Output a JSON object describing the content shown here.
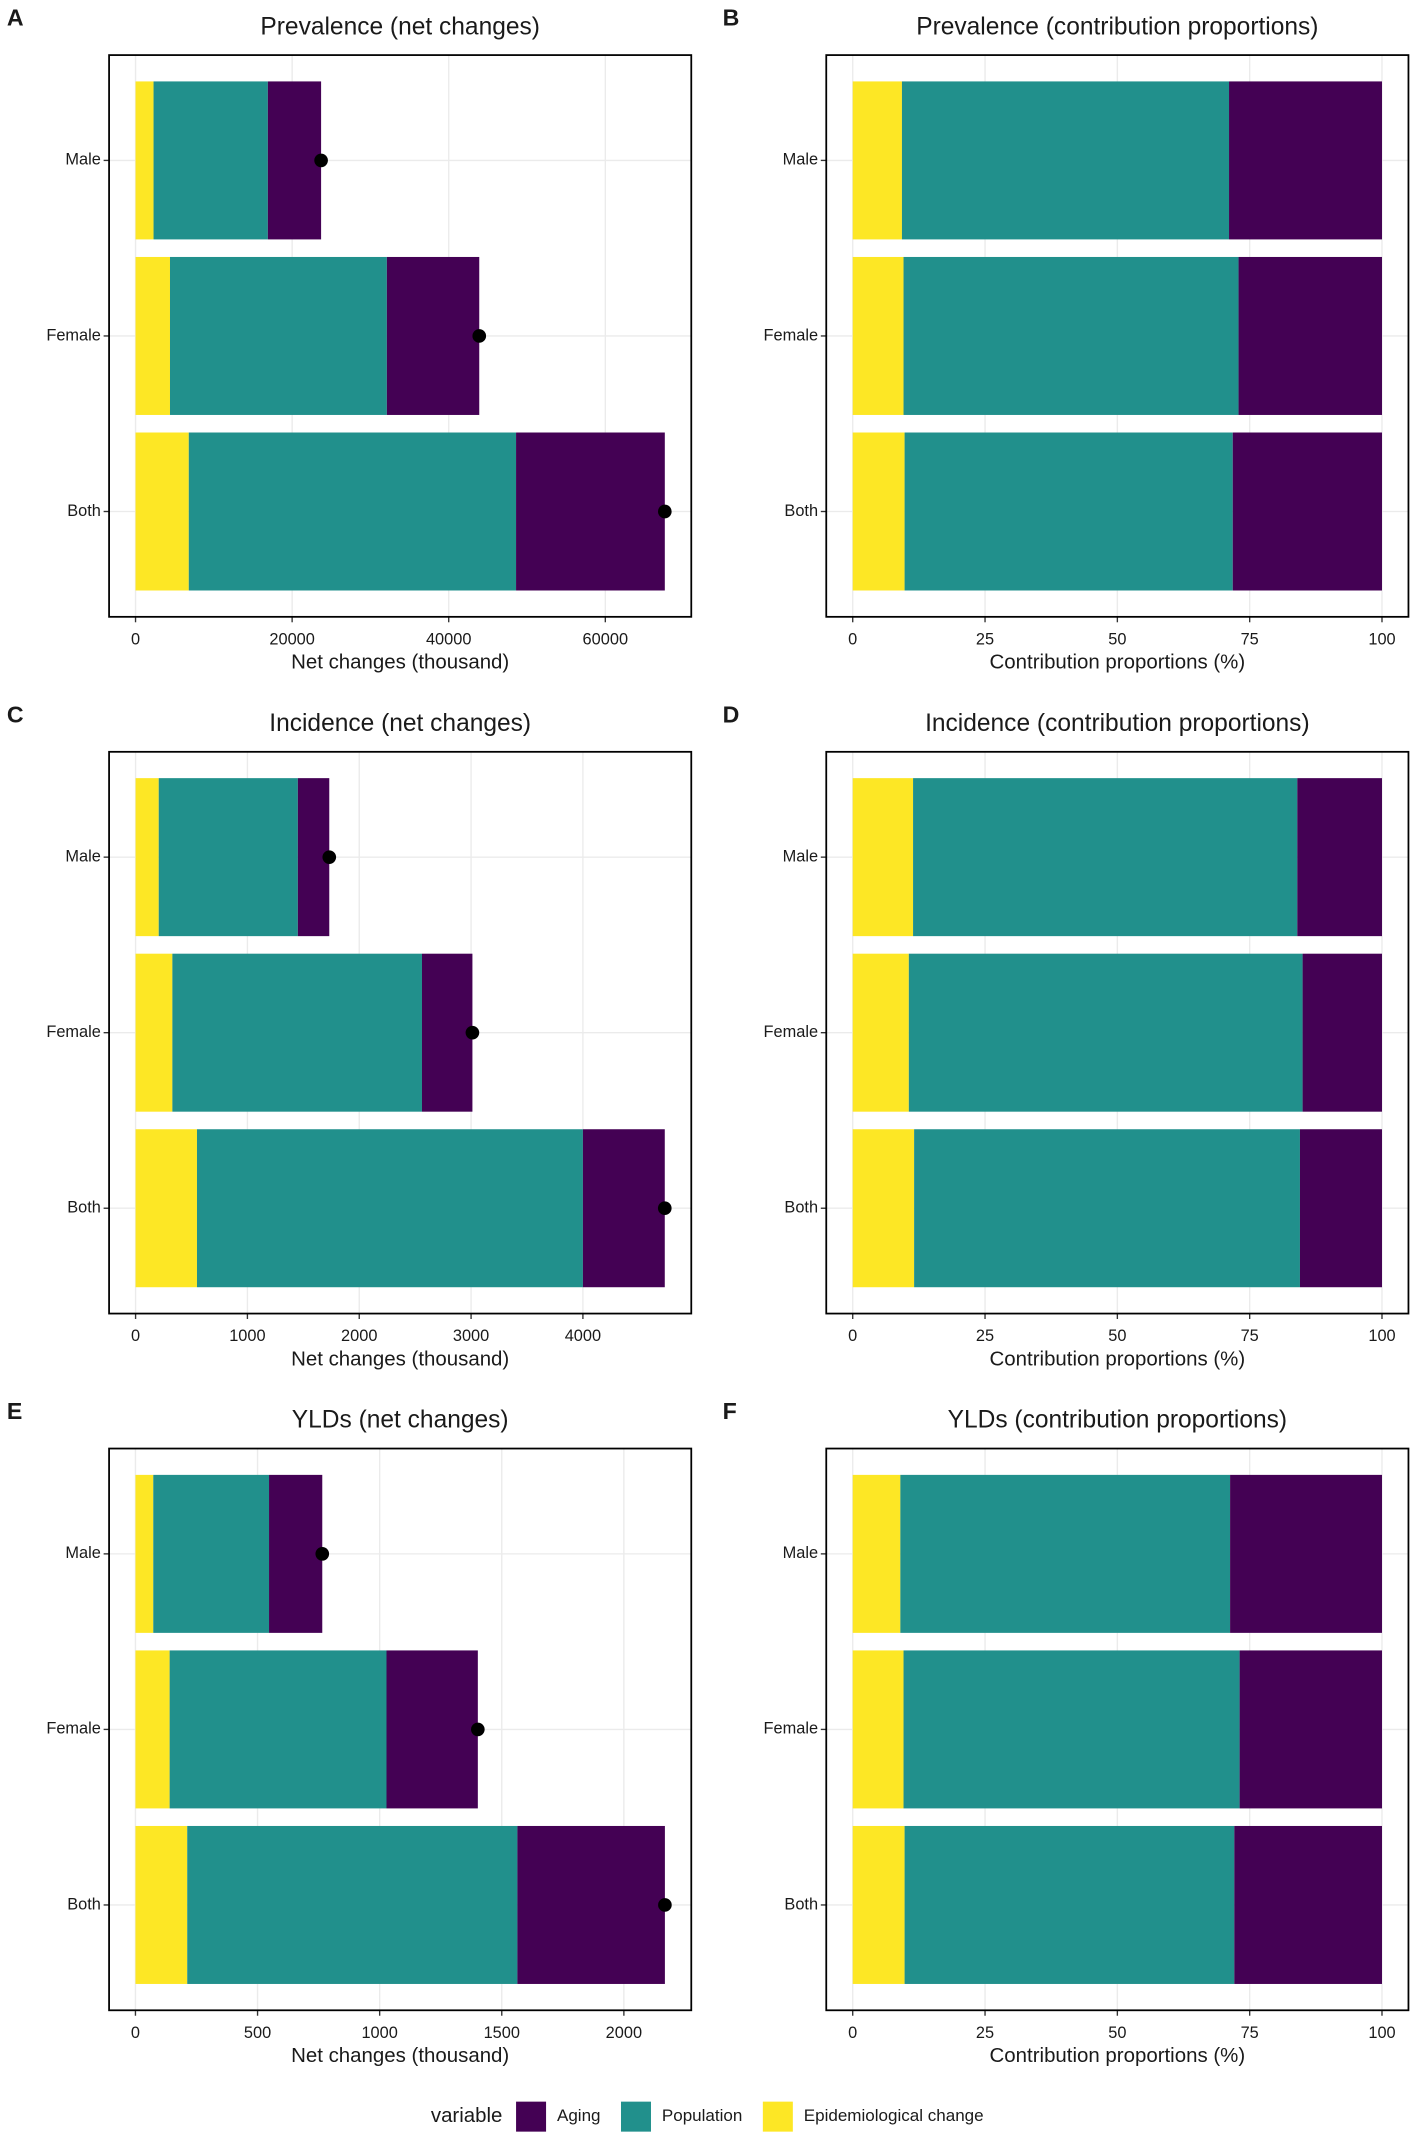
{
  "chart_data": [
    {
      "type": "bar",
      "orientation": "horizontal",
      "stacked": true,
      "panel": "A",
      "title": "Prevalence (net changes)",
      "x_label": "Net changes (thousand)",
      "categories": [
        "Male",
        "Female",
        "Both"
      ],
      "series": [
        {
          "values": [
            6800,
            11800,
            19000
          ]
        },
        {
          "values": [
            14600,
            27700,
            41800
          ]
        },
        {
          "values": [
            2300,
            4400,
            6800
          ]
        }
      ],
      "totals": [
        23700,
        43900,
        67600
      ],
      "xlim": [
        -3380,
        70980
      ],
      "xticks": [
        0,
        20000,
        40000,
        60000
      ],
      "grid": true
    },
    {
      "type": "bar",
      "orientation": "horizontal",
      "stacked": true,
      "panel": "B",
      "title": "Prevalence (contribution proportions)",
      "x_label": "Contribution proportions (%)",
      "categories": [
        "Male",
        "Female",
        "Both"
      ],
      "series": [
        {
          "values": [
            28.9,
            27.1,
            28.2
          ]
        },
        {
          "values": [
            61.8,
            63.3,
            62.0
          ]
        },
        {
          "values": [
            9.3,
            9.6,
            9.8
          ]
        }
      ],
      "xlim": [
        -5,
        105
      ],
      "xticks": [
        0,
        25,
        50,
        75,
        100
      ],
      "grid": true
    },
    {
      "type": "bar",
      "orientation": "horizontal",
      "stacked": true,
      "panel": "C",
      "title": "Incidence (net changes)",
      "x_label": "Net changes (thousand)",
      "categories": [
        "Male",
        "Female",
        "Both"
      ],
      "series": [
        {
          "values": [
            281,
            451,
            732
          ]
        },
        {
          "values": [
            1244,
            2232,
            3451
          ]
        },
        {
          "values": [
            207,
            329,
            549
          ]
        }
      ],
      "totals": [
        1732,
        3012,
        4732
      ],
      "xlim": [
        -237,
        4969
      ],
      "xticks": [
        0,
        1000,
        2000,
        3000,
        4000
      ],
      "grid": true
    },
    {
      "type": "bar",
      "orientation": "horizontal",
      "stacked": true,
      "panel": "D",
      "title": "Incidence (contribution proportions)",
      "x_label": "Contribution proportions (%)",
      "categories": [
        "Male",
        "Female",
        "Both"
      ],
      "series": [
        {
          "values": [
            16.0,
            15.0,
            15.5
          ]
        },
        {
          "values": [
            72.6,
            74.4,
            72.9
          ]
        },
        {
          "values": [
            11.4,
            10.6,
            11.6
          ]
        }
      ],
      "xlim": [
        -5,
        105
      ],
      "xticks": [
        0,
        25,
        50,
        75,
        100
      ],
      "grid": true
    },
    {
      "type": "bar",
      "orientation": "horizontal",
      "stacked": true,
      "panel": "E",
      "title": "YLDs (net changes)",
      "x_label": "Net changes (thousand)",
      "categories": [
        "Male",
        "Female",
        "Both"
      ],
      "series": [
        {
          "values": [
            218,
            374,
            604
          ]
        },
        {
          "values": [
            474,
            888,
            1352
          ]
        },
        {
          "values": [
            73,
            140,
            212
          ]
        }
      ],
      "totals": [
        765,
        1402,
        2168
      ],
      "xlim": [
        -108,
        2276
      ],
      "xticks": [
        0,
        500,
        1000,
        1500,
        2000
      ],
      "grid": true
    },
    {
      "type": "bar",
      "orientation": "horizontal",
      "stacked": true,
      "panel": "F",
      "title": "YLDs (contribution proportions)",
      "x_label": "Contribution proportions (%)",
      "categories": [
        "Male",
        "Female",
        "Both"
      ],
      "series": [
        {
          "values": [
            28.7,
            26.9,
            27.9
          ]
        },
        {
          "values": [
            62.3,
            63.5,
            62.3
          ]
        },
        {
          "values": [
            9.0,
            9.6,
            9.8
          ]
        }
      ],
      "xlim": [
        -5,
        105
      ],
      "xticks": [
        0,
        25,
        50,
        75,
        100
      ],
      "grid": true
    }
  ],
  "legend": {
    "title": "variable",
    "entries": [
      {
        "name": "Aging",
        "color": "#440154"
      },
      {
        "name": "Population",
        "color": "#21908c"
      },
      {
        "name": "Epidemiological change",
        "color": "#fde725"
      }
    ]
  }
}
